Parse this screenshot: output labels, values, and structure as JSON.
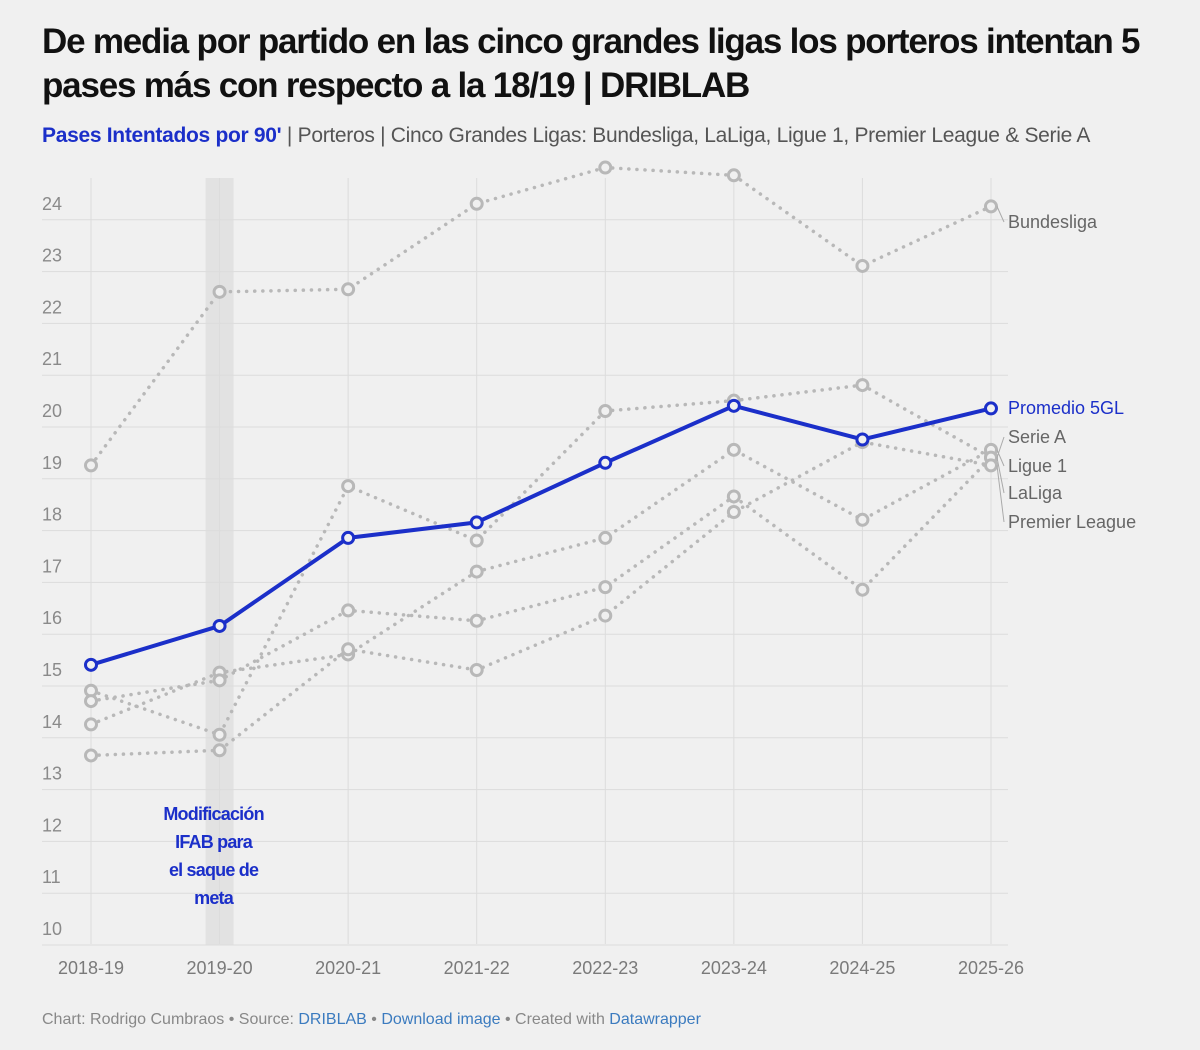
{
  "header": {
    "title": "De media por partido en las cinco grandes ligas los porteros intentan 5 pases más con respecto a la 18/19 | DRIBLAB",
    "subtitle_highlight": "Pases Intentados por 90'",
    "subtitle_rest": " | Porteros | Cinco Grandes Ligas: Bundesliga, LaLiga, Ligue 1, Premier League & Serie A"
  },
  "footer": {
    "chart_by": "Chart: Rodrigo Cumbraos",
    "sep1": " • Source: ",
    "source": "DRIBLAB",
    "sep2": " • ",
    "download": "Download image",
    "sep3": " • Created with ",
    "tool": "Datawrapper"
  },
  "colors": {
    "highlight": "#1b2fc9",
    "context": "#b8b8b8",
    "grid": "#dcdcdc",
    "shade": "#e2e2e2"
  },
  "chart_data": {
    "type": "line",
    "title": "De media por partido en las cinco grandes ligas los porteros intentan 5 pases más con respecto a la 18/19 | DRIBLAB",
    "xlabel": "",
    "ylabel": "Pases Intentados por 90'",
    "x": [
      "2018-19",
      "2019-20",
      "2020-21",
      "2021-22",
      "2022-23",
      "2023-24",
      "2024-25",
      "2025-26"
    ],
    "ylim": [
      10,
      24.7
    ],
    "yticks": [
      10,
      11,
      12,
      13,
      14,
      15,
      16,
      17,
      18,
      19,
      20,
      21,
      22,
      23,
      24
    ],
    "grid": true,
    "legend": "direct labels at right",
    "series": [
      {
        "name": "Bundesliga",
        "values": [
          18.95,
          22.3,
          22.35,
          24.0,
          24.7,
          24.55,
          22.8,
          23.95
        ],
        "highlight": false
      },
      {
        "name": "Promedio 5GL",
        "values": [
          15.1,
          15.85,
          17.55,
          17.85,
          19.0,
          20.1,
          19.45,
          20.05
        ],
        "highlight": true
      },
      {
        "name": "Serie A",
        "values": [
          14.6,
          13.75,
          18.55,
          17.5,
          20.0,
          20.2,
          20.5,
          19.1
        ],
        "highlight": false
      },
      {
        "name": "Ligue 1",
        "values": [
          13.95,
          14.95,
          15.3,
          16.9,
          17.55,
          19.25,
          17.9,
          19.25
        ],
        "highlight": false
      },
      {
        "name": "LaLiga",
        "values": [
          14.4,
          14.8,
          16.15,
          15.95,
          16.6,
          18.35,
          16.55,
          19.1
        ],
        "highlight": false
      },
      {
        "name": "Premier League",
        "values": [
          13.35,
          13.45,
          15.4,
          15.0,
          16.05,
          18.05,
          19.4,
          18.95
        ],
        "highlight": false
      }
    ],
    "annotations": [
      {
        "text_lines": [
          "Modificación",
          "IFAB para",
          "el saque de",
          "meta"
        ],
        "x": "2019-20"
      }
    ]
  }
}
